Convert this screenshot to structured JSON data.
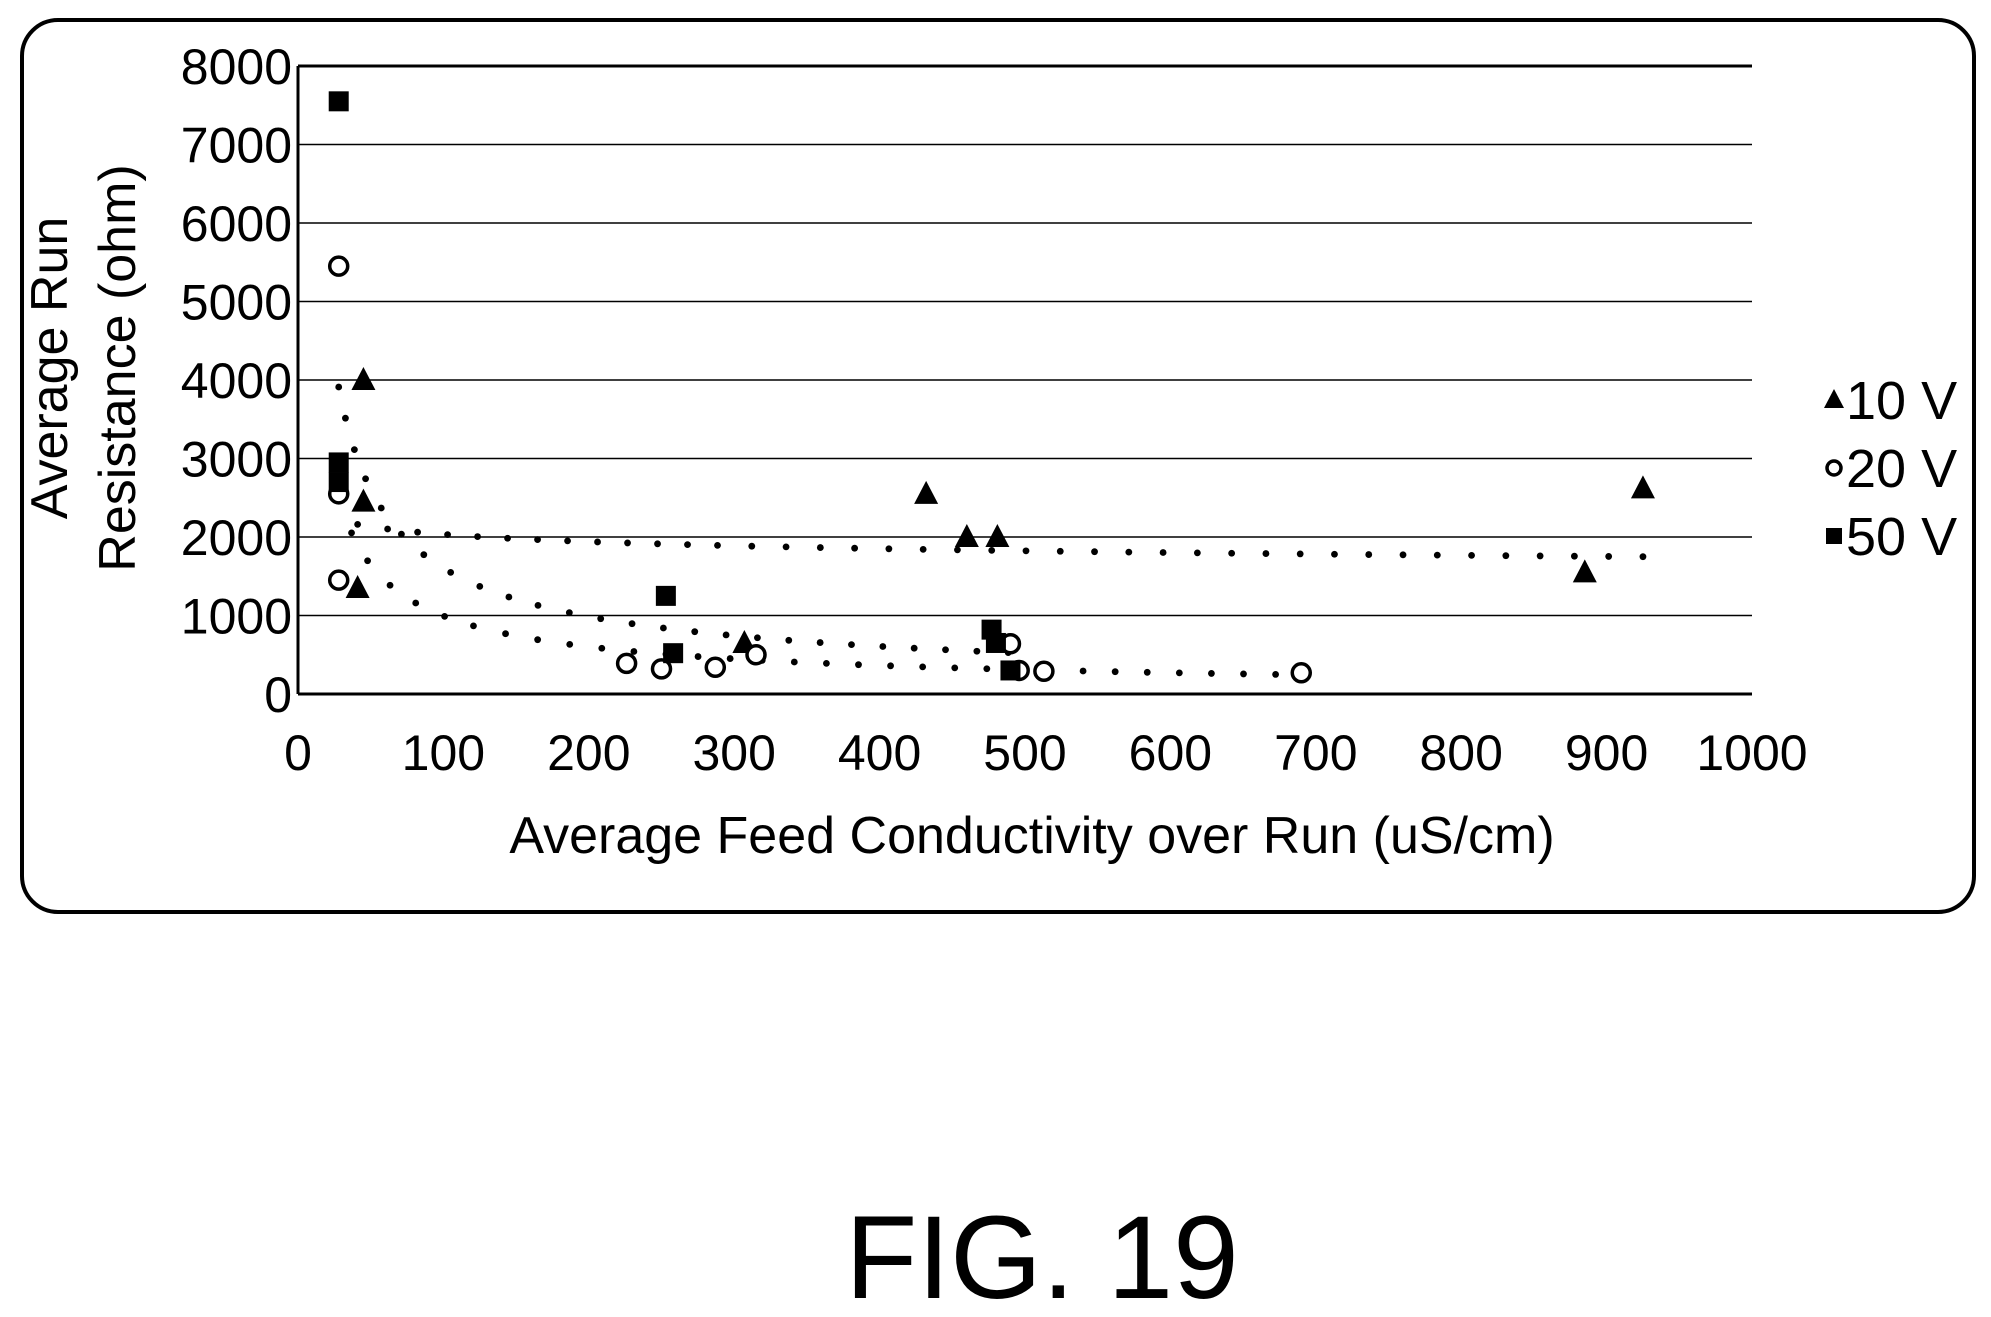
{
  "figure": {
    "caption": "FIG. 19"
  },
  "chart_data": {
    "type": "scatter",
    "title": "",
    "xlabel": "Average Feed Conductivity over Run (uS/cm)",
    "ylabel": [
      "Average Run",
      "Resistance (ohm)"
    ],
    "xlim": [
      0,
      1000
    ],
    "ylim": [
      0,
      8000
    ],
    "x_ticks": [
      0,
      100,
      200,
      300,
      400,
      500,
      600,
      700,
      800,
      900,
      1000
    ],
    "y_ticks": [
      0,
      1000,
      2000,
      3000,
      4000,
      5000,
      6000,
      7000,
      8000
    ],
    "grid": "horizontal",
    "legend_position": "right",
    "series": [
      {
        "name": "10 V",
        "marker": "triangle",
        "points": [
          [
            45,
            4000
          ],
          [
            45,
            2450
          ],
          [
            41,
            1350
          ],
          [
            307,
            650
          ],
          [
            432,
            2550
          ],
          [
            460,
            2000
          ],
          [
            481,
            2000
          ],
          [
            885,
            1550
          ],
          [
            925,
            2620
          ]
        ]
      },
      {
        "name": "20 V",
        "marker": "circle",
        "points": [
          [
            28,
            5450
          ],
          [
            28,
            2550
          ],
          [
            28,
            1450
          ],
          [
            226,
            390
          ],
          [
            250,
            320
          ],
          [
            287,
            340
          ],
          [
            315,
            500
          ],
          [
            490,
            640
          ],
          [
            496,
            300
          ],
          [
            513,
            290
          ],
          [
            690,
            270
          ]
        ]
      },
      {
        "name": "50 V",
        "marker": "square",
        "points": [
          [
            28,
            7550
          ],
          [
            28,
            2950
          ],
          [
            28,
            2700
          ],
          [
            253,
            1250
          ],
          [
            258,
            520
          ],
          [
            477,
            820
          ],
          [
            480,
            650
          ],
          [
            490,
            300
          ]
        ]
      }
    ],
    "trendlines": [
      {
        "series": "10 V",
        "style": "dotted"
      },
      {
        "series": "20 V",
        "style": "dotted"
      },
      {
        "series": "50 V",
        "style": "dotted"
      }
    ]
  }
}
